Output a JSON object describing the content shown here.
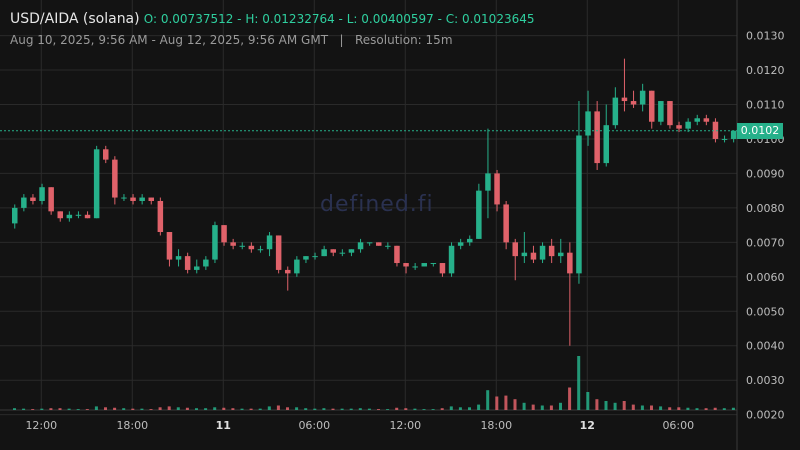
{
  "header": {
    "symbol": "USD/AIDA (solana)",
    "ohlc": "O: 0.00737512 - H: 0.01232764 - L: 0.00400597 - C: 0.01023645",
    "range": "Aug 10, 2025, 9:56 AM - Aug 12, 2025, 9:56 AM GMT",
    "separator": "|",
    "resolution": "Resolution: 15m"
  },
  "watermark": "defined.fi",
  "price_badge": "0.0102",
  "colors": {
    "up": "#26b08a",
    "down": "#e0626a",
    "background": "#131313",
    "grid": "#2a2a2a"
  },
  "chart_data": {
    "type": "candlestick",
    "ylim": [
      0.0017,
      0.0138
    ],
    "yticks": [
      "0.0130",
      "0.0120",
      "0.0110",
      "0.0100",
      "0.0090",
      "0.0080",
      "0.0070",
      "0.0060",
      "0.0050",
      "0.0040",
      "0.0030",
      "0.0020"
    ],
    "xticks": [
      {
        "label": "12:00",
        "bold": false,
        "i": 3
      },
      {
        "label": "18:00",
        "bold": false,
        "i": 13
      },
      {
        "label": "11",
        "bold": true,
        "i": 23
      },
      {
        "label": "06:00",
        "bold": false,
        "i": 33
      },
      {
        "label": "12:00",
        "bold": false,
        "i": 43
      },
      {
        "label": "18:00",
        "bold": false,
        "i": 53
      },
      {
        "label": "12",
        "bold": true,
        "i": 63
      },
      {
        "label": "06:00",
        "bold": false,
        "i": 73
      }
    ],
    "last_price": 0.01023645,
    "candles": [
      [
        0.00755,
        0.0081,
        0.0074,
        0.008,
        0.2
      ],
      [
        0.008,
        0.0084,
        0.0079,
        0.0083,
        0.15
      ],
      [
        0.0083,
        0.0084,
        0.0081,
        0.0082,
        0.1
      ],
      [
        0.0082,
        0.0087,
        0.0081,
        0.0086,
        0.15
      ],
      [
        0.0086,
        0.0086,
        0.0078,
        0.0079,
        0.2
      ],
      [
        0.0079,
        0.0079,
        0.0076,
        0.0077,
        0.2
      ],
      [
        0.0077,
        0.0079,
        0.0076,
        0.0078,
        0.15
      ],
      [
        0.0078,
        0.0079,
        0.0077,
        0.0078,
        0.1
      ],
      [
        0.0078,
        0.0079,
        0.0077,
        0.0077,
        0.1
      ],
      [
        0.0077,
        0.0098,
        0.0077,
        0.0097,
        0.4
      ],
      [
        0.0097,
        0.0098,
        0.0093,
        0.0094,
        0.3
      ],
      [
        0.0094,
        0.0095,
        0.0081,
        0.0083,
        0.25
      ],
      [
        0.0083,
        0.0084,
        0.0082,
        0.0083,
        0.2
      ],
      [
        0.0083,
        0.0084,
        0.0081,
        0.0082,
        0.15
      ],
      [
        0.0082,
        0.0084,
        0.0081,
        0.0083,
        0.15
      ],
      [
        0.0083,
        0.0083,
        0.0081,
        0.0082,
        0.1
      ],
      [
        0.0082,
        0.0083,
        0.0072,
        0.0073,
        0.3
      ],
      [
        0.0073,
        0.0073,
        0.0063,
        0.0065,
        0.4
      ],
      [
        0.0065,
        0.0068,
        0.0063,
        0.0066,
        0.3
      ],
      [
        0.0066,
        0.0067,
        0.0061,
        0.0062,
        0.25
      ],
      [
        0.0062,
        0.0065,
        0.0061,
        0.0063,
        0.2
      ],
      [
        0.0063,
        0.0066,
        0.0062,
        0.0065,
        0.2
      ],
      [
        0.0065,
        0.0076,
        0.0064,
        0.0075,
        0.3
      ],
      [
        0.0075,
        0.0075,
        0.0069,
        0.007,
        0.25
      ],
      [
        0.007,
        0.0071,
        0.0068,
        0.0069,
        0.2
      ],
      [
        0.0069,
        0.007,
        0.0068,
        0.0069,
        0.15
      ],
      [
        0.0069,
        0.007,
        0.0067,
        0.0068,
        0.15
      ],
      [
        0.0068,
        0.0069,
        0.0067,
        0.0068,
        0.15
      ],
      [
        0.0068,
        0.0073,
        0.0066,
        0.0072,
        0.4
      ],
      [
        0.0072,
        0.0072,
        0.0061,
        0.0062,
        0.5
      ],
      [
        0.0062,
        0.0063,
        0.0056,
        0.0061,
        0.3
      ],
      [
        0.0061,
        0.0066,
        0.006,
        0.0065,
        0.3
      ],
      [
        0.0065,
        0.0066,
        0.0064,
        0.0066,
        0.2
      ],
      [
        0.0066,
        0.0067,
        0.0065,
        0.0066,
        0.15
      ],
      [
        0.0066,
        0.0069,
        0.0066,
        0.0068,
        0.2
      ],
      [
        0.0068,
        0.0068,
        0.0066,
        0.0067,
        0.15
      ],
      [
        0.0067,
        0.0068,
        0.0066,
        0.0067,
        0.15
      ],
      [
        0.0067,
        0.0068,
        0.0066,
        0.0068,
        0.15
      ],
      [
        0.0068,
        0.0071,
        0.0067,
        0.007,
        0.2
      ],
      [
        0.007,
        0.007,
        0.0069,
        0.007,
        0.15
      ],
      [
        0.007,
        0.007,
        0.0069,
        0.0069,
        0.1
      ],
      [
        0.0069,
        0.007,
        0.0068,
        0.0069,
        0.1
      ],
      [
        0.0069,
        0.0069,
        0.0063,
        0.0064,
        0.25
      ],
      [
        0.0064,
        0.0064,
        0.0061,
        0.0063,
        0.2
      ],
      [
        0.0063,
        0.0064,
        0.0062,
        0.0063,
        0.15
      ],
      [
        0.0063,
        0.0064,
        0.0063,
        0.0064,
        0.1
      ],
      [
        0.0064,
        0.0064,
        0.0063,
        0.0064,
        0.1
      ],
      [
        0.0064,
        0.0064,
        0.006,
        0.0061,
        0.2
      ],
      [
        0.0061,
        0.007,
        0.006,
        0.0069,
        0.4
      ],
      [
        0.0069,
        0.0071,
        0.0068,
        0.007,
        0.3
      ],
      [
        0.007,
        0.0072,
        0.0069,
        0.0071,
        0.3
      ],
      [
        0.0071,
        0.0087,
        0.0071,
        0.0085,
        0.6
      ],
      [
        0.0085,
        0.0103,
        0.0077,
        0.009,
        2.2
      ],
      [
        0.009,
        0.0091,
        0.0079,
        0.0081,
        1.5
      ],
      [
        0.0081,
        0.0082,
        0.0068,
        0.007,
        1.6
      ],
      [
        0.007,
        0.0071,
        0.0059,
        0.0066,
        1.2
      ],
      [
        0.0066,
        0.0073,
        0.0064,
        0.0067,
        0.8
      ],
      [
        0.0067,
        0.0069,
        0.0064,
        0.0065,
        0.6
      ],
      [
        0.0065,
        0.007,
        0.0064,
        0.0069,
        0.5
      ],
      [
        0.0069,
        0.0071,
        0.0064,
        0.0066,
        0.5
      ],
      [
        0.0066,
        0.0071,
        0.0064,
        0.0067,
        0.8
      ],
      [
        0.0067,
        0.007,
        0.004,
        0.0061,
        2.5
      ],
      [
        0.0061,
        0.0111,
        0.0058,
        0.0101,
        6.0
      ],
      [
        0.0101,
        0.0114,
        0.0098,
        0.0108,
        2.0
      ],
      [
        0.0108,
        0.0111,
        0.0091,
        0.0093,
        1.2
      ],
      [
        0.0093,
        0.011,
        0.0092,
        0.0104,
        1.0
      ],
      [
        0.0104,
        0.0115,
        0.0103,
        0.0112,
        0.8
      ],
      [
        0.0112,
        0.01233,
        0.0108,
        0.0111,
        1.0
      ],
      [
        0.0111,
        0.0114,
        0.0109,
        0.011,
        0.6
      ],
      [
        0.011,
        0.0116,
        0.0108,
        0.0114,
        0.5
      ],
      [
        0.0114,
        0.0114,
        0.0103,
        0.0105,
        0.5
      ],
      [
        0.0105,
        0.0111,
        0.0104,
        0.0111,
        0.4
      ],
      [
        0.0111,
        0.0111,
        0.0103,
        0.0104,
        0.3
      ],
      [
        0.0104,
        0.0105,
        0.0102,
        0.0103,
        0.3
      ],
      [
        0.0103,
        0.0106,
        0.0102,
        0.0105,
        0.25
      ],
      [
        0.0105,
        0.0107,
        0.0104,
        0.0106,
        0.2
      ],
      [
        0.0106,
        0.0107,
        0.0104,
        0.0105,
        0.2
      ],
      [
        0.0105,
        0.0106,
        0.0099,
        0.01,
        0.25
      ],
      [
        0.01,
        0.0101,
        0.0099,
        0.01,
        0.2
      ],
      [
        0.01,
        0.01025,
        0.0099,
        0.01024,
        0.25
      ]
    ]
  }
}
